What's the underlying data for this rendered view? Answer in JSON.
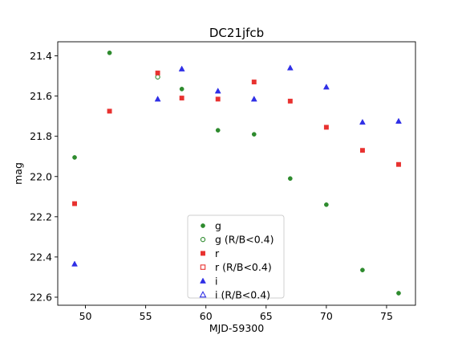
{
  "chart_data": {
    "type": "scatter",
    "title": "DC21jfcb",
    "xlabel": "MJD-59300",
    "ylabel": "mag",
    "xlim": [
      47.7,
      77.4
    ],
    "ylim": [
      22.64,
      21.33
    ],
    "y_inverted": true,
    "grid": false,
    "legend_position": "lower center",
    "xticks": [
      50,
      55,
      60,
      65,
      70,
      75
    ],
    "yticks": [
      21.4,
      21.6,
      21.8,
      22.0,
      22.2,
      22.4,
      22.6
    ],
    "ytick_labels": [
      "21.4",
      "21.6",
      "21.8",
      "22.0",
      "22.2",
      "22.4",
      "22.6"
    ],
    "series": [
      {
        "name": "g",
        "marker": "circle",
        "filled": true,
        "color": "#2e8b2e",
        "x": [
          49.1,
          52.0,
          58.0,
          61.0,
          64.0,
          67.0,
          70.0,
          73.0,
          76.0
        ],
        "y": [
          21.905,
          21.385,
          21.565,
          21.77,
          21.79,
          22.01,
          22.14,
          22.465,
          22.58
        ]
      },
      {
        "name": "g (R/B<0.4)",
        "marker": "circle",
        "filled": false,
        "color": "#2e8b2e",
        "x": [
          56.0
        ],
        "y": [
          21.505
        ]
      },
      {
        "name": "r",
        "marker": "square",
        "filled": true,
        "color": "#e8312f",
        "x": [
          49.1,
          52.0,
          56.0,
          58.0,
          61.0,
          64.0,
          67.0,
          70.0,
          73.0,
          76.0
        ],
        "y": [
          22.135,
          21.675,
          21.485,
          21.61,
          21.615,
          21.53,
          21.625,
          21.755,
          21.87,
          21.94
        ]
      },
      {
        "name": "r (R/B<0.4)",
        "marker": "square",
        "filled": false,
        "color": "#e8312f",
        "x": [],
        "y": []
      },
      {
        "name": "i",
        "marker": "triangle",
        "filled": true,
        "color": "#2f2fe6",
        "x": [
          49.1,
          56.0,
          58.0,
          61.0,
          64.0,
          67.0,
          70.0,
          73.0,
          76.0
        ],
        "y": [
          22.435,
          21.615,
          21.465,
          21.575,
          21.615,
          21.46,
          21.555,
          21.73,
          21.725
        ]
      },
      {
        "name": "i (R/B<0.4)",
        "marker": "triangle",
        "filled": false,
        "color": "#2f2fe6",
        "x": [],
        "y": []
      }
    ]
  }
}
